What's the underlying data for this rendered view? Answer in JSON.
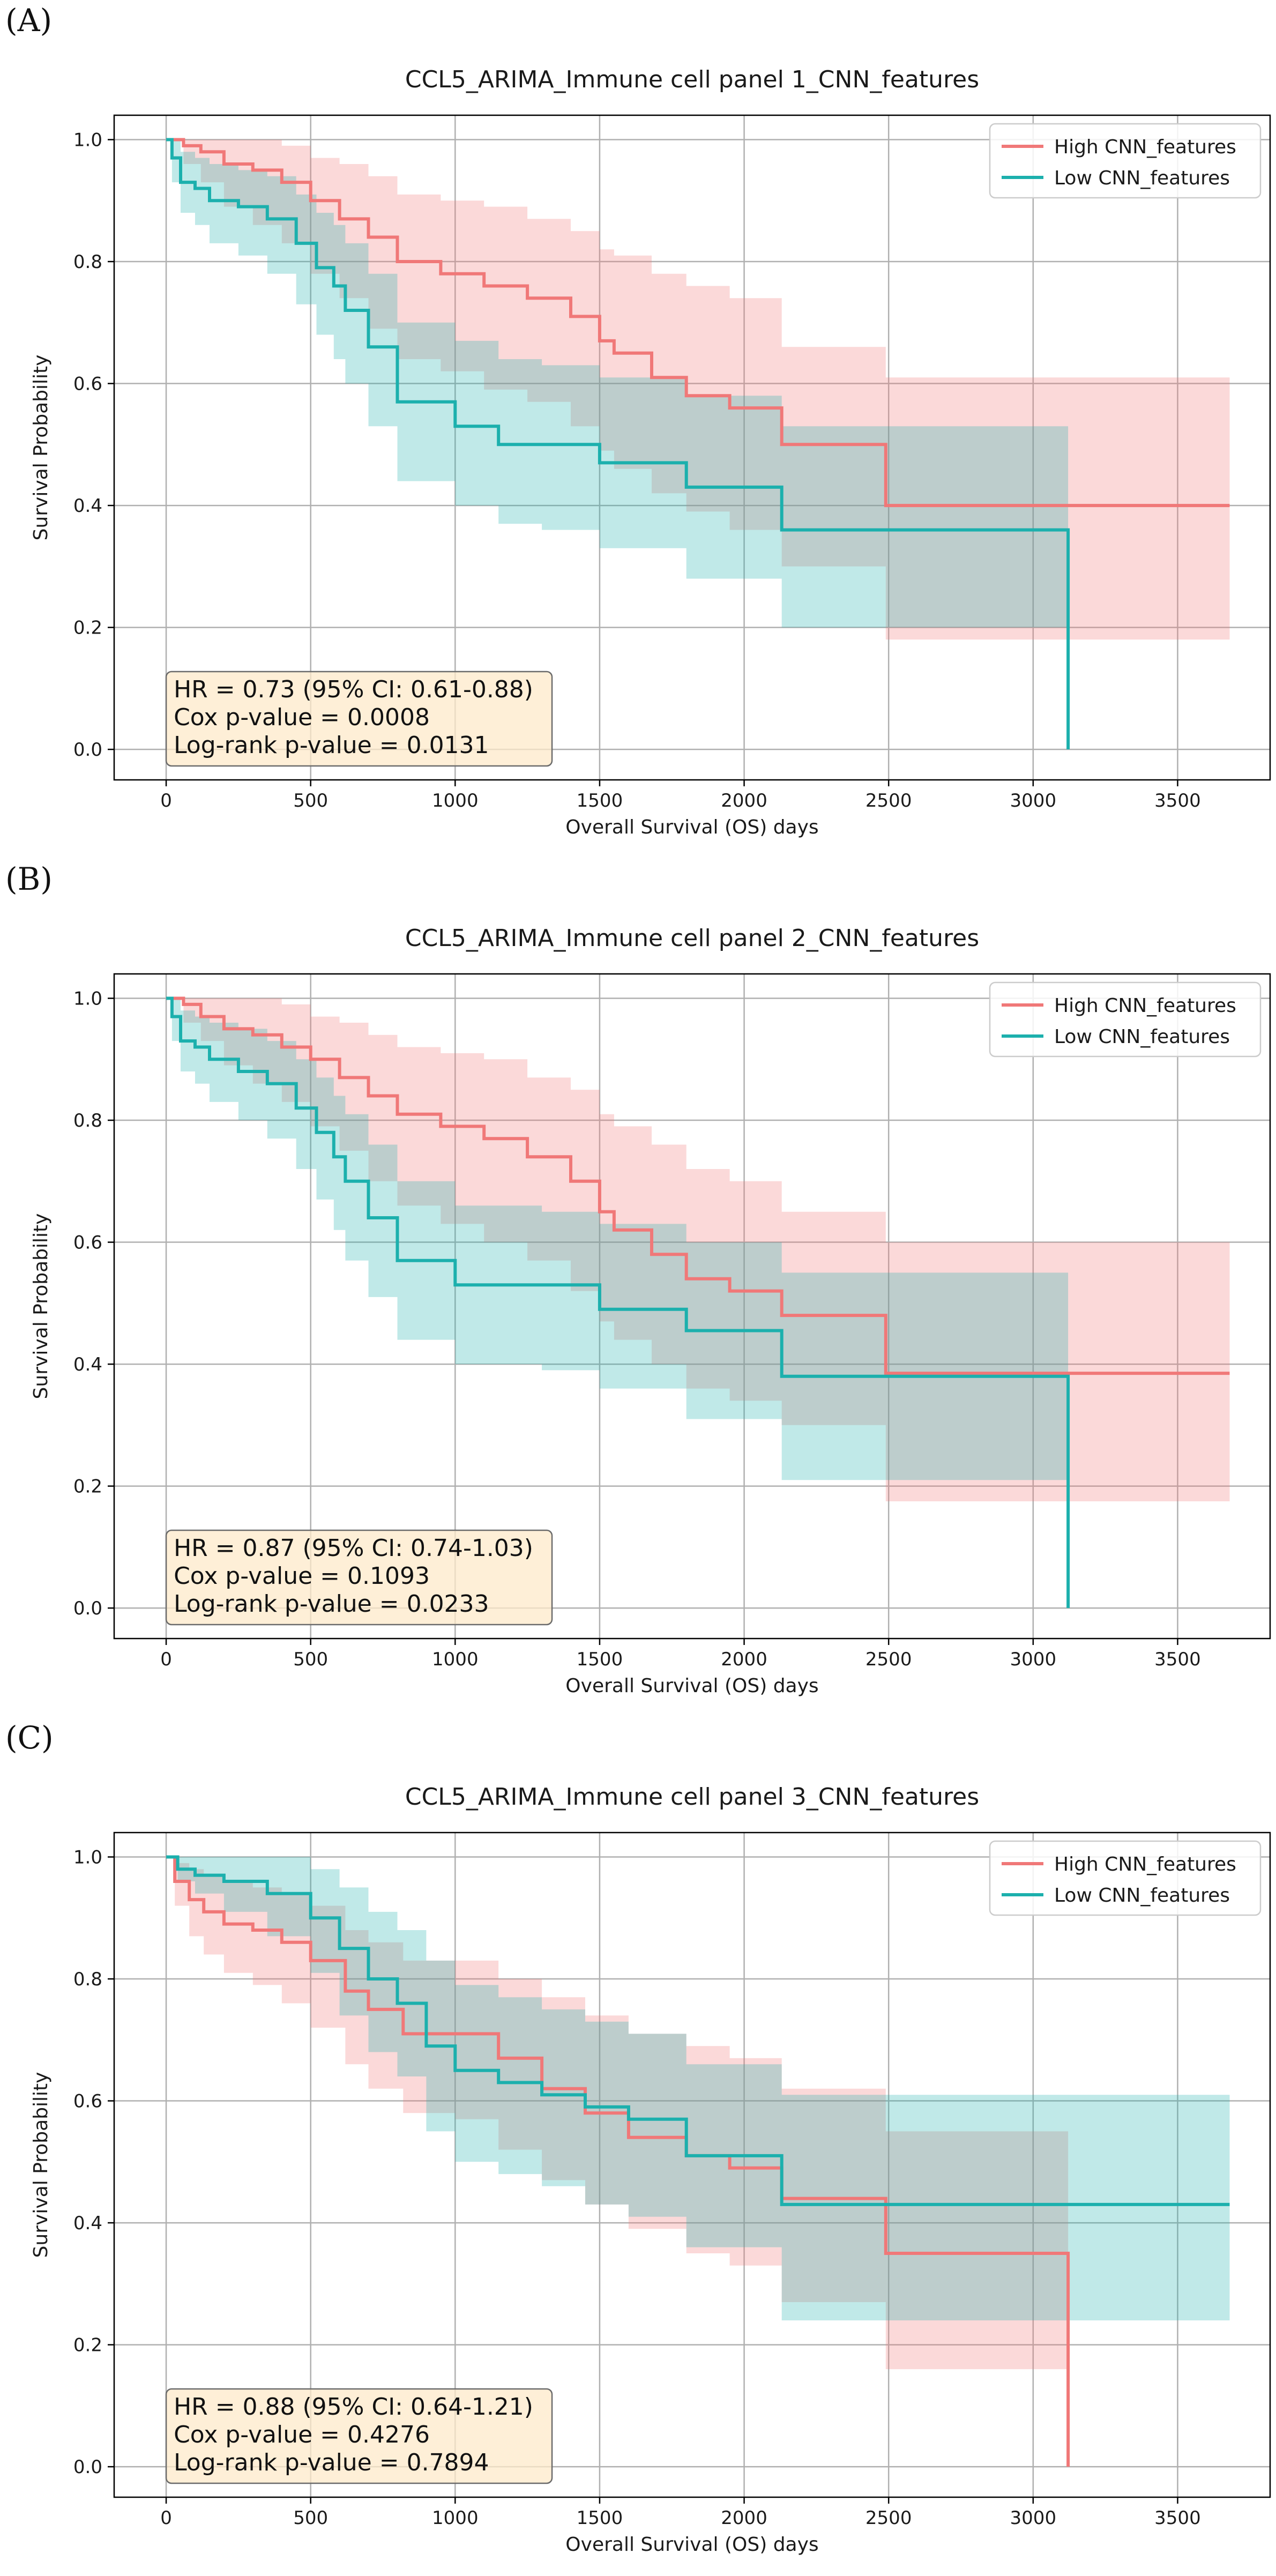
{
  "chart_data": [
    {
      "type": "line",
      "panel_label": "(A)",
      "title": "CCL5_ARIMA_Immune cell panel 1_CNN_features",
      "xlabel": "Overall Survival (OS) days",
      "ylabel": "Survival Probability",
      "xlim": [
        -180,
        3820
      ],
      "ylim": [
        -0.05,
        1.04
      ],
      "xticks": [
        0,
        500,
        1000,
        1500,
        2000,
        2500,
        3000,
        3500
      ],
      "yticks": [
        "0.0",
        "0.2",
        "0.4",
        "0.6",
        "0.8",
        "1.0"
      ],
      "grid": true,
      "legend_position": "top-right",
      "stats": [
        "HR = 0.73 (95% CI: 0.61-0.88)",
        "Cox p-value = 0.0008",
        "Log-rank p-value = 0.0131"
      ],
      "series": [
        {
          "name": "High CNN_features",
          "color": "#f07878",
          "x": [
            0,
            60,
            120,
            200,
            300,
            400,
            500,
            600,
            700,
            800,
            950,
            1100,
            1250,
            1400,
            1500,
            1550,
            1680,
            1800,
            1950,
            2130,
            2490,
            3680
          ],
          "y": [
            1.0,
            0.99,
            0.98,
            0.96,
            0.95,
            0.93,
            0.9,
            0.87,
            0.84,
            0.8,
            0.78,
            0.76,
            0.74,
            0.71,
            0.67,
            0.65,
            0.61,
            0.58,
            0.56,
            0.5,
            0.4,
            0.4
          ],
          "ci_lower": [
            1.0,
            0.96,
            0.93,
            0.89,
            0.86,
            0.83,
            0.78,
            0.74,
            0.69,
            0.64,
            0.62,
            0.59,
            0.57,
            0.53,
            0.49,
            0.46,
            0.42,
            0.39,
            0.36,
            0.3,
            0.18,
            0.18
          ],
          "ci_upper": [
            1.0,
            1.0,
            1.0,
            1.0,
            1.0,
            0.99,
            0.97,
            0.96,
            0.94,
            0.91,
            0.9,
            0.89,
            0.87,
            0.85,
            0.82,
            0.81,
            0.78,
            0.76,
            0.74,
            0.66,
            0.61,
            0.61
          ]
        },
        {
          "name": "Low CNN_features",
          "color": "#1cb0ad",
          "x": [
            0,
            20,
            50,
            100,
            150,
            250,
            350,
            450,
            520,
            580,
            620,
            700,
            800,
            1000,
            1150,
            1300,
            1500,
            1800,
            2130,
            3120,
            3121
          ],
          "y": [
            1.0,
            0.97,
            0.93,
            0.92,
            0.9,
            0.89,
            0.87,
            0.83,
            0.79,
            0.76,
            0.72,
            0.66,
            0.57,
            0.53,
            0.5,
            0.5,
            0.47,
            0.43,
            0.36,
            0.36,
            0.0
          ],
          "ci_lower": [
            1.0,
            0.93,
            0.88,
            0.86,
            0.83,
            0.81,
            0.78,
            0.73,
            0.68,
            0.64,
            0.6,
            0.53,
            0.44,
            0.4,
            0.37,
            0.36,
            0.33,
            0.28,
            0.2,
            0.2,
            0.0
          ],
          "ci_upper": [
            1.0,
            1.0,
            0.98,
            0.97,
            0.96,
            0.95,
            0.94,
            0.91,
            0.88,
            0.86,
            0.83,
            0.78,
            0.7,
            0.67,
            0.64,
            0.63,
            0.61,
            0.58,
            0.53,
            0.53,
            0.0
          ]
        }
      ]
    },
    {
      "type": "line",
      "panel_label": "(B)",
      "title": "CCL5_ARIMA_Immune cell panel 2_CNN_features",
      "xlabel": "Overall Survival (OS) days",
      "ylabel": "Survival Probability",
      "xlim": [
        -180,
        3820
      ],
      "ylim": [
        -0.05,
        1.04
      ],
      "xticks": [
        0,
        500,
        1000,
        1500,
        2000,
        2500,
        3000,
        3500
      ],
      "yticks": [
        "0.0",
        "0.2",
        "0.4",
        "0.6",
        "0.8",
        "1.0"
      ],
      "grid": true,
      "legend_position": "top-right",
      "stats": [
        "HR = 0.87 (95% CI: 0.74-1.03)",
        "Cox p-value = 0.1093",
        "Log-rank p-value = 0.0233"
      ],
      "series": [
        {
          "name": "High CNN_features",
          "color": "#f07878",
          "x": [
            0,
            60,
            120,
            200,
            300,
            400,
            500,
            600,
            700,
            800,
            950,
            1100,
            1250,
            1400,
            1500,
            1550,
            1680,
            1800,
            1950,
            2130,
            2490,
            3680
          ],
          "y": [
            1.0,
            0.99,
            0.97,
            0.95,
            0.94,
            0.92,
            0.9,
            0.87,
            0.84,
            0.81,
            0.79,
            0.77,
            0.74,
            0.7,
            0.65,
            0.62,
            0.58,
            0.54,
            0.52,
            0.48,
            0.385,
            0.385
          ],
          "ci_lower": [
            1.0,
            0.96,
            0.93,
            0.89,
            0.86,
            0.83,
            0.79,
            0.75,
            0.7,
            0.66,
            0.63,
            0.6,
            0.57,
            0.52,
            0.47,
            0.44,
            0.4,
            0.36,
            0.34,
            0.3,
            0.175,
            0.175
          ],
          "ci_upper": [
            1.0,
            1.0,
            1.0,
            1.0,
            1.0,
            0.99,
            0.97,
            0.96,
            0.94,
            0.92,
            0.91,
            0.9,
            0.87,
            0.85,
            0.81,
            0.79,
            0.76,
            0.72,
            0.7,
            0.65,
            0.6,
            0.6
          ]
        },
        {
          "name": "Low CNN_features",
          "color": "#1cb0ad",
          "x": [
            0,
            20,
            50,
            100,
            150,
            250,
            350,
            450,
            520,
            580,
            620,
            700,
            800,
            1000,
            1150,
            1300,
            1500,
            1800,
            2130,
            3120,
            3121
          ],
          "y": [
            1.0,
            0.97,
            0.93,
            0.92,
            0.9,
            0.88,
            0.86,
            0.82,
            0.78,
            0.74,
            0.7,
            0.64,
            0.57,
            0.53,
            0.53,
            0.53,
            0.49,
            0.455,
            0.38,
            0.38,
            0.0
          ],
          "ci_lower": [
            1.0,
            0.93,
            0.88,
            0.86,
            0.83,
            0.8,
            0.77,
            0.72,
            0.67,
            0.62,
            0.57,
            0.51,
            0.44,
            0.4,
            0.4,
            0.39,
            0.36,
            0.31,
            0.21,
            0.21,
            0.0
          ],
          "ci_upper": [
            1.0,
            1.0,
            0.98,
            0.97,
            0.96,
            0.95,
            0.93,
            0.9,
            0.87,
            0.84,
            0.81,
            0.76,
            0.7,
            0.66,
            0.66,
            0.65,
            0.63,
            0.6,
            0.55,
            0.55,
            0.0
          ]
        }
      ]
    },
    {
      "type": "line",
      "panel_label": "(C)",
      "title": "CCL5_ARIMA_Immune cell panel 3_CNN_features",
      "xlabel": "Overall Survival (OS) days",
      "ylabel": "Survival Probability",
      "xlim": [
        -180,
        3820
      ],
      "ylim": [
        -0.05,
        1.04
      ],
      "xticks": [
        0,
        500,
        1000,
        1500,
        2000,
        2500,
        3000,
        3500
      ],
      "yticks": [
        "0.0",
        "0.2",
        "0.4",
        "0.6",
        "0.8",
        "1.0"
      ],
      "grid": true,
      "legend_position": "top-right",
      "stats": [
        "HR = 0.88 (95% CI: 0.64-1.21)",
        "Cox p-value = 0.4276",
        "Log-rank p-value = 0.7894"
      ],
      "series": [
        {
          "name": "High CNN_features",
          "color": "#f07878",
          "x": [
            0,
            30,
            80,
            130,
            200,
            300,
            400,
            500,
            620,
            700,
            820,
            1000,
            1150,
            1300,
            1450,
            1600,
            1800,
            1950,
            2130,
            2490,
            3120,
            3121
          ],
          "y": [
            1.0,
            0.96,
            0.93,
            0.91,
            0.89,
            0.88,
            0.86,
            0.83,
            0.78,
            0.75,
            0.71,
            0.71,
            0.67,
            0.62,
            0.58,
            0.54,
            0.51,
            0.49,
            0.44,
            0.35,
            0.35,
            0.0
          ],
          "ci_lower": [
            1.0,
            0.92,
            0.87,
            0.84,
            0.81,
            0.79,
            0.76,
            0.72,
            0.66,
            0.62,
            0.58,
            0.57,
            0.52,
            0.47,
            0.43,
            0.39,
            0.35,
            0.33,
            0.27,
            0.16,
            0.16,
            0.0
          ],
          "ci_upper": [
            1.0,
            0.99,
            0.98,
            0.97,
            0.96,
            0.95,
            0.94,
            0.92,
            0.88,
            0.86,
            0.83,
            0.83,
            0.8,
            0.77,
            0.74,
            0.71,
            0.69,
            0.67,
            0.62,
            0.55,
            0.55,
            0.0
          ]
        },
        {
          "name": "Low CNN_features",
          "color": "#1cb0ad",
          "x": [
            0,
            40,
            100,
            200,
            350,
            500,
            600,
            700,
            800,
            900,
            1000,
            1150,
            1300,
            1450,
            1600,
            1800,
            2130,
            3680
          ],
          "y": [
            1.0,
            0.98,
            0.97,
            0.96,
            0.94,
            0.9,
            0.85,
            0.8,
            0.76,
            0.69,
            0.65,
            0.63,
            0.61,
            0.59,
            0.57,
            0.51,
            0.43,
            0.43
          ],
          "ci_lower": [
            1.0,
            0.96,
            0.94,
            0.91,
            0.87,
            0.81,
            0.74,
            0.68,
            0.64,
            0.55,
            0.5,
            0.48,
            0.46,
            0.43,
            0.41,
            0.36,
            0.24,
            0.24
          ],
          "ci_upper": [
            1.0,
            1.0,
            1.0,
            1.0,
            1.0,
            0.98,
            0.95,
            0.91,
            0.88,
            0.83,
            0.79,
            0.77,
            0.75,
            0.73,
            0.71,
            0.66,
            0.61,
            0.61
          ]
        }
      ]
    }
  ]
}
